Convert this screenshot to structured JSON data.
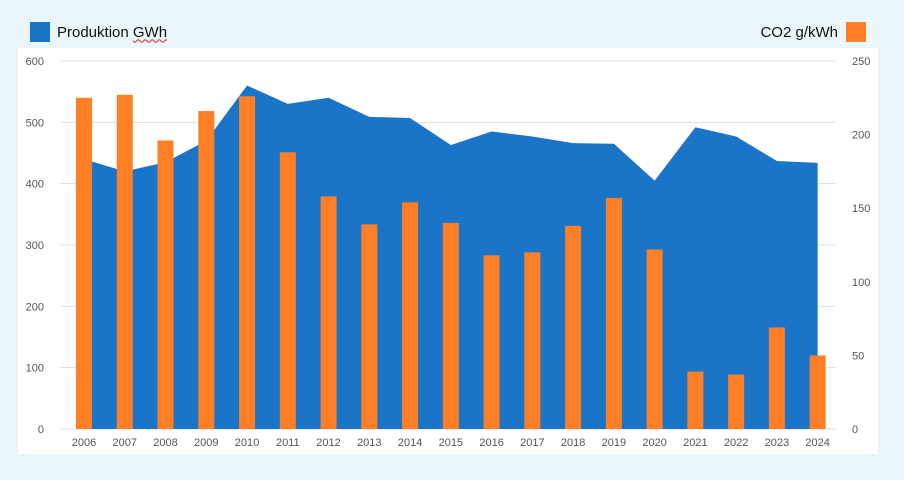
{
  "legend": {
    "left_label": "Produktion GWh",
    "right_label": "CO2 g/kWh"
  },
  "colors": {
    "production": "#1a75c9",
    "co2": "#ff7f27",
    "grid": "#e8d7e6",
    "axis_text": "#555555",
    "background": "#eaf6f9"
  },
  "chart_data": {
    "type": "area",
    "categories": [
      "2006",
      "2007",
      "2008",
      "2009",
      "2010",
      "2011",
      "2012",
      "2013",
      "2014",
      "2015",
      "2016",
      "2017",
      "2018",
      "2019",
      "2020",
      "2021",
      "2022",
      "2023",
      "2024"
    ],
    "series": [
      {
        "name": "Produktion GWh",
        "type": "area",
        "axis": "left",
        "values": [
          440,
          420,
          435,
          470,
          560,
          530,
          540,
          509,
          507,
          463,
          485,
          477,
          466,
          465,
          405,
          492,
          477,
          437,
          434
        ]
      },
      {
        "name": "CO2 g/kWh",
        "type": "bar",
        "axis": "right",
        "values": [
          225,
          227,
          196,
          216,
          226,
          188,
          158,
          139,
          154,
          140,
          118,
          120,
          138,
          157,
          122,
          39,
          37,
          69,
          50
        ]
      }
    ],
    "y_left": {
      "min": 0,
      "max": 600,
      "ticks": [
        "0",
        "100",
        "200",
        "300",
        "400",
        "500",
        "600"
      ]
    },
    "y_right": {
      "min": 0,
      "max": 250,
      "ticks": [
        "0",
        "50",
        "100",
        "150",
        "200",
        "250"
      ]
    },
    "grid": true,
    "legend_position": "top"
  }
}
